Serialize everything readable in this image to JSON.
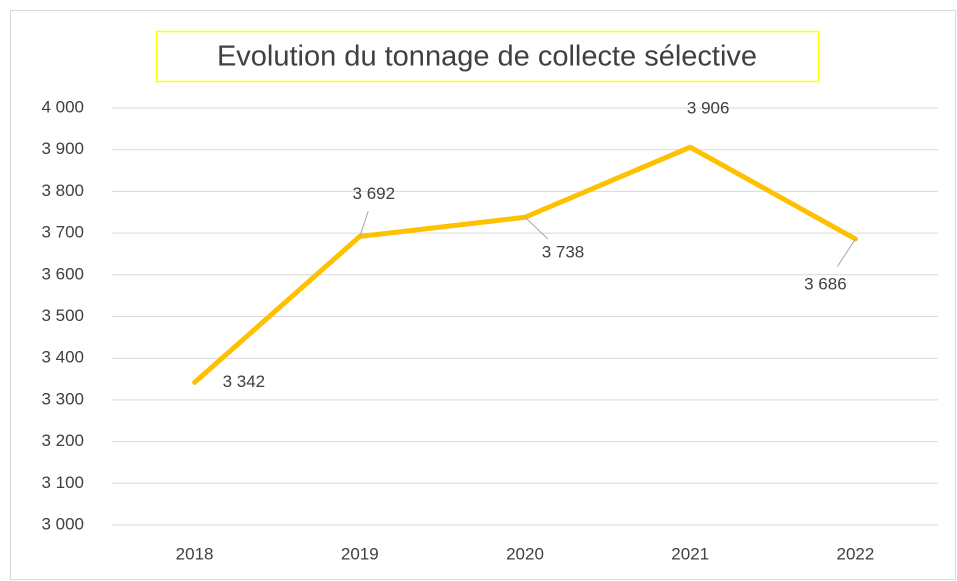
{
  "chart_data": {
    "type": "line",
    "title": "Evolution du tonnage de collecte sélective",
    "categories": [
      "2018",
      "2019",
      "2020",
      "2021",
      "2022"
    ],
    "series": [
      {
        "color": "#ffc000",
        "values": [
          3342,
          3692,
          3738,
          3906,
          3686
        ],
        "value_labels": [
          "3 342",
          "3 692",
          "3 738",
          "3 906",
          "3 686"
        ]
      }
    ],
    "ylim": [
      3000,
      4000
    ],
    "yticks": [
      {
        "value": 3000,
        "label": "3 000"
      },
      {
        "value": 3100,
        "label": "3 100"
      },
      {
        "value": 3200,
        "label": "3 200"
      },
      {
        "value": 3300,
        "label": "3 300"
      },
      {
        "value": 3400,
        "label": "3 400"
      },
      {
        "value": 3500,
        "label": "3 500"
      },
      {
        "value": 3600,
        "label": "3 600"
      },
      {
        "value": 3700,
        "label": "3 700"
      },
      {
        "value": 3800,
        "label": "3 800"
      },
      {
        "value": 3900,
        "label": "3 900"
      },
      {
        "value": 4000,
        "label": "4 000"
      }
    ],
    "grid": true
  }
}
